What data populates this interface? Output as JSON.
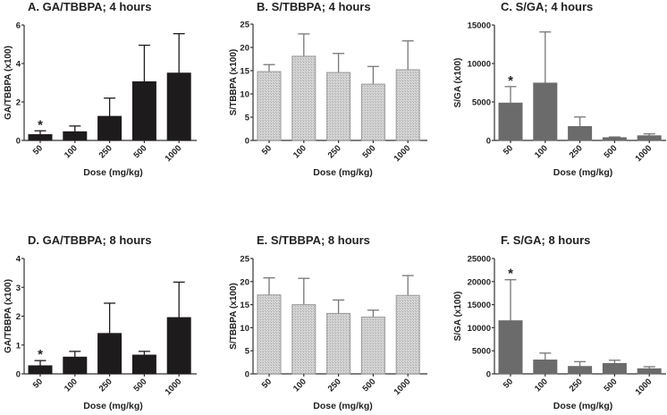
{
  "chart_data": [
    {
      "id": "A",
      "type": "bar",
      "title": "A. GA/TBBPA; 4 hours",
      "xlabel": "Dose (mg/kg)",
      "ylabel": "GA/TBBPA (x100)",
      "categories": [
        "50",
        "100",
        "250",
        "500",
        "1000"
      ],
      "values": [
        0.3,
        0.45,
        1.25,
        3.05,
        3.5
      ],
      "error_upper": [
        0.5,
        0.75,
        2.2,
        4.95,
        5.55
      ],
      "ylim": [
        0,
        6
      ],
      "yticks": [
        0,
        2,
        4,
        6
      ],
      "significance": [
        "*",
        "",
        "",
        "",
        ""
      ],
      "bar_style": "solid-black",
      "grid": false
    },
    {
      "id": "B",
      "type": "bar",
      "title": "B. S/TBBPA; 4 hours",
      "xlabel": "Dose (mg/kg)",
      "ylabel": "S/TBBPA (x100)",
      "categories": [
        "50",
        "100",
        "250",
        "500",
        "1000"
      ],
      "values": [
        14.8,
        18.1,
        14.6,
        12.1,
        15.2
      ],
      "error_upper": [
        16.3,
        22.9,
        18.7,
        15.9,
        21.4
      ],
      "ylim": [
        0,
        25
      ],
      "yticks": [
        0,
        5,
        10,
        15,
        20,
        25
      ],
      "significance": [
        "",
        "",
        "",
        "",
        ""
      ],
      "bar_style": "hatched-gray",
      "grid": false
    },
    {
      "id": "C",
      "type": "bar",
      "title": "C. S/GA; 4 hours",
      "xlabel": "Dose (mg/kg)",
      "ylabel": "S/GA (x100)",
      "categories": [
        "50",
        "100",
        "250",
        "500",
        "1000"
      ],
      "values": [
        4850,
        7450,
        1800,
        350,
        600
      ],
      "error_upper": [
        7000,
        14100,
        3050,
        450,
        850
      ],
      "ylim": [
        0,
        15000
      ],
      "yticks": [
        0,
        5000,
        10000,
        15000
      ],
      "significance": [
        "*",
        "",
        "",
        "",
        ""
      ],
      "bar_style": "solid-gray",
      "grid": false
    },
    {
      "id": "D",
      "type": "bar",
      "title": "D. GA/TBBPA; 8 hours",
      "xlabel": "Dose (mg/kg)",
      "ylabel": "GA/TBBPA (x100)",
      "categories": [
        "50",
        "100",
        "250",
        "500",
        "1000"
      ],
      "values": [
        0.28,
        0.58,
        1.4,
        0.65,
        1.95
      ],
      "error_upper": [
        0.46,
        0.78,
        2.45,
        0.78,
        3.18
      ],
      "ylim": [
        0,
        4
      ],
      "yticks": [
        0,
        1,
        2,
        3,
        4
      ],
      "significance": [
        "*",
        "",
        "",
        "",
        ""
      ],
      "bar_style": "solid-black",
      "grid": false
    },
    {
      "id": "E",
      "type": "bar",
      "title": "E. S/TBBPA; 8 hours",
      "xlabel": "Dose (mg/kg)",
      "ylabel": "S/TBBPA (x100)",
      "categories": [
        "50",
        "100",
        "250",
        "500",
        "1000"
      ],
      "values": [
        17.1,
        15.0,
        13.1,
        12.3,
        17.0
      ],
      "error_upper": [
        20.8,
        20.7,
        16.0,
        13.8,
        21.3
      ],
      "ylim": [
        0,
        25
      ],
      "yticks": [
        0,
        5,
        10,
        15,
        20,
        25
      ],
      "significance": [
        "",
        "",
        "",
        "",
        ""
      ],
      "bar_style": "hatched-gray",
      "grid": false
    },
    {
      "id": "F",
      "type": "bar",
      "title": "F. S/GA; 8 hours",
      "xlabel": "Dose (mg/kg)",
      "ylabel": "S/GA (x100)",
      "categories": [
        "50",
        "100",
        "250",
        "500",
        "1000"
      ],
      "values": [
        11500,
        3000,
        1600,
        2250,
        1100
      ],
      "error_upper": [
        20400,
        4500,
        2650,
        2950,
        1550
      ],
      "ylim": [
        0,
        25000
      ],
      "yticks": [
        0,
        5000,
        10000,
        15000,
        20000,
        25000
      ],
      "significance": [
        "*",
        "",
        "",
        "",
        ""
      ],
      "bar_style": "solid-gray",
      "grid": false
    }
  ],
  "colors": {
    "solid-black": "#1e1b1c",
    "solid-gray": "#6b6b6b",
    "hatched-gray": "#c9c9c9",
    "hatched-gray-border": "#9a9a9a",
    "axis": "#333333",
    "error-black": "#1e1b1c",
    "error-gray": "#777777"
  }
}
